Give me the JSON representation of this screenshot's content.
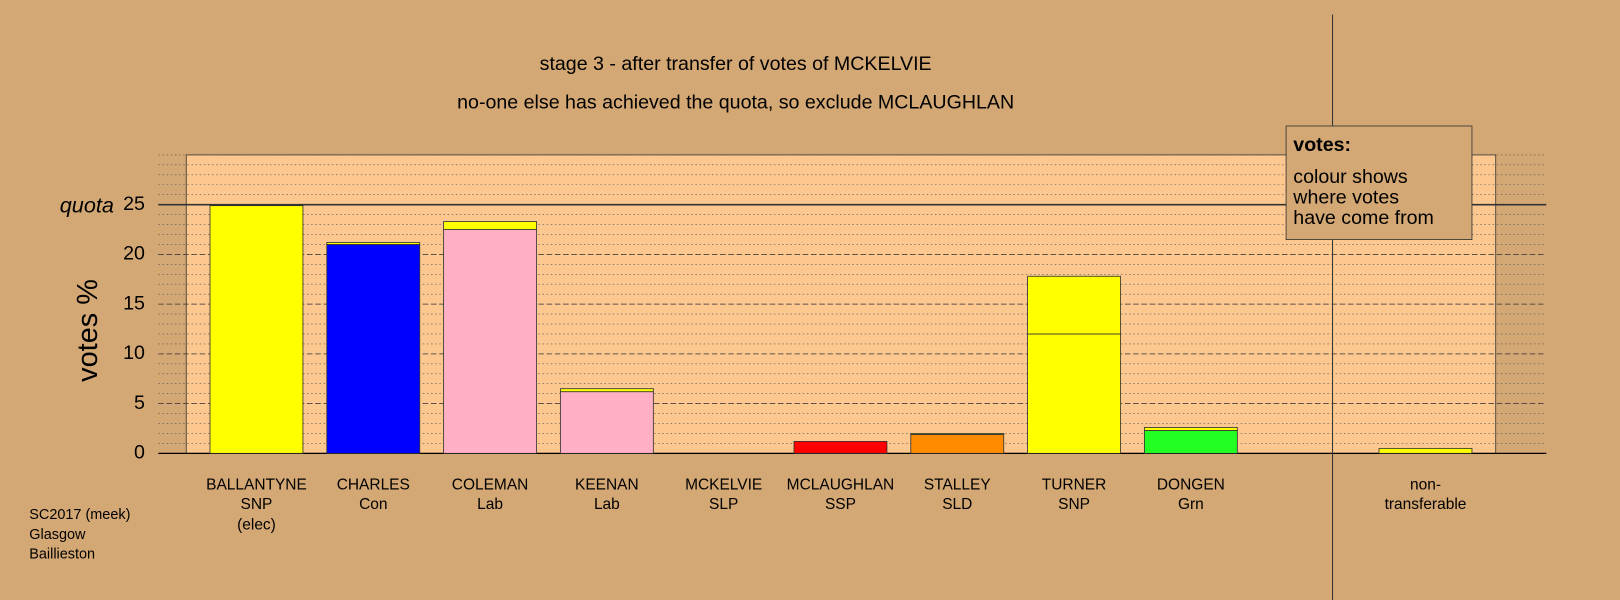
{
  "chart_data": {
    "type": "stacked-bar",
    "title": "stage 3 - after transfer of votes of MCKELVIE",
    "subtitle": "no-one else has achieved the quota, so exclude MCLAUGHLAN",
    "y_label": "votes %",
    "quota_label": "quota",
    "quota": 25,
    "categories": [
      "BALLANTYNE",
      "CHARLES",
      "COLEMAN",
      "KEENAN",
      "MCKELVIE",
      "MCLAUGHLAN",
      "STALLEY",
      "TURNER",
      "DONGEN",
      "non-"
    ],
    "parties": [
      "SNP",
      "Con",
      "Lab",
      "Lab",
      "SLP",
      "SSP",
      "SLD",
      "SNP",
      "Grn",
      "transferable"
    ],
    "notes": [
      "(elec)",
      null,
      null,
      null,
      null,
      null,
      null,
      null,
      null,
      null
    ],
    "series": [
      {
        "colors": [
          "#ffff00",
          "#0000ff",
          "#ffb0c4",
          "#ffb0c4",
          null,
          "#ff0000",
          "#ff8c00",
          "#ffff00",
          "#22ff22",
          null
        ],
        "values": [
          24.9,
          21.0,
          22.5,
          6.2,
          0,
          1.2,
          1.9,
          12.0,
          2.3,
          0
        ]
      },
      {
        "color": "#ffff00",
        "values": [
          0,
          0.2,
          0.8,
          0.3,
          0,
          0,
          0.1,
          5.8,
          0.3,
          0.5
        ]
      }
    ],
    "ylim": [
      0,
      30
    ],
    "yticks": [
      0,
      5,
      10,
      15,
      20,
      25
    ],
    "grid": true,
    "minor_grid_step": 1,
    "legend": {
      "title": "votes:",
      "lines": [
        "colour shows",
        "where votes",
        "have come from"
      ]
    },
    "footnote": [
      "SC2017 (meek)",
      "Glasgow",
      "Baillieston"
    ]
  }
}
